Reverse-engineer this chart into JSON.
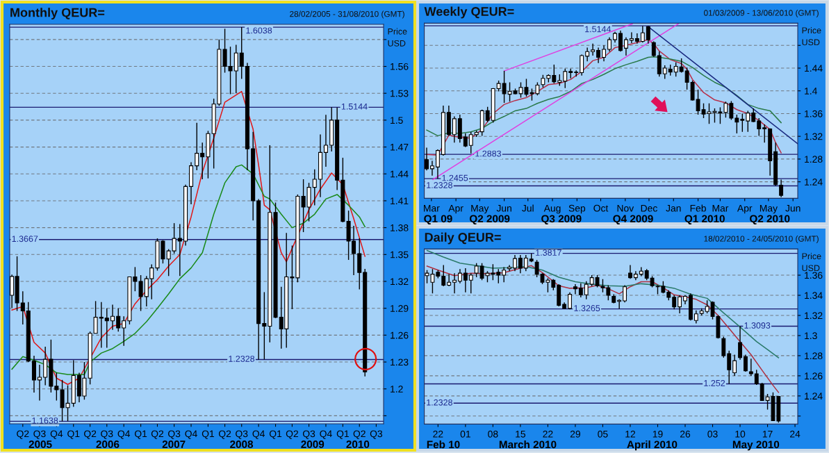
{
  "chart_data": [
    {
      "type": "candlestick",
      "title": "Monthly QEUR=",
      "subtitle": "28/02/2005 - 31/08/2010 (GMT)",
      "ylabel": "Price\nUSD",
      "grid": "y",
      "x": [
        "2005-02",
        "2005-03",
        "2005-04",
        "2005-05",
        "2005-06",
        "2005-07",
        "2005-08",
        "2005-09",
        "2005-10",
        "2005-11",
        "2005-12",
        "2006-01",
        "2006-02",
        "2006-03",
        "2006-04",
        "2006-05",
        "2006-06",
        "2006-07",
        "2006-08",
        "2006-09",
        "2006-10",
        "2006-11",
        "2006-12",
        "2007-01",
        "2007-02",
        "2007-03",
        "2007-04",
        "2007-05",
        "2007-06",
        "2007-07",
        "2007-08",
        "2007-09",
        "2007-10",
        "2007-11",
        "2007-12",
        "2008-01",
        "2008-02",
        "2008-03",
        "2008-04",
        "2008-05",
        "2008-06",
        "2008-07",
        "2008-08",
        "2008-09",
        "2008-10",
        "2008-11",
        "2008-12",
        "2009-01",
        "2009-02",
        "2009-03",
        "2009-04",
        "2009-05",
        "2009-06",
        "2009-07",
        "2009-08",
        "2009-09",
        "2009-10",
        "2009-11",
        "2009-12",
        "2010-01",
        "2010-02",
        "2010-03",
        "2010-04",
        "2010-05"
      ],
      "ohlc": [
        [
          1.3045,
          1.3275,
          1.2905,
          1.3255
        ],
        [
          1.3255,
          1.348,
          1.287,
          1.296
        ],
        [
          1.296,
          1.309,
          1.272,
          1.287
        ],
        [
          1.287,
          1.297,
          1.23,
          1.231
        ],
        [
          1.231,
          1.237,
          1.196,
          1.21
        ],
        [
          1.21,
          1.227,
          1.187,
          1.213
        ],
        [
          1.213,
          1.247,
          1.204,
          1.233
        ],
        [
          1.233,
          1.255,
          1.196,
          1.203
        ],
        [
          1.203,
          1.218,
          1.187,
          1.199
        ],
        [
          1.199,
          1.21,
          1.1638,
          1.179
        ],
        [
          1.179,
          1.204,
          1.164,
          1.184
        ],
        [
          1.184,
          1.232,
          1.18,
          1.215
        ],
        [
          1.215,
          1.218,
          1.185,
          1.192
        ],
        [
          1.192,
          1.23,
          1.188,
          1.212
        ],
        [
          1.212,
          1.264,
          1.205,
          1.262
        ],
        [
          1.262,
          1.298,
          1.262,
          1.28
        ],
        [
          1.28,
          1.297,
          1.246,
          1.279
        ],
        [
          1.279,
          1.29,
          1.246,
          1.276
        ],
        [
          1.276,
          1.294,
          1.266,
          1.281
        ],
        [
          1.281,
          1.29,
          1.264,
          1.268
        ],
        [
          1.268,
          1.281,
          1.248,
          1.276
        ],
        [
          1.276,
          1.325,
          1.272,
          1.325
        ],
        [
          1.325,
          1.336,
          1.309,
          1.32
        ],
        [
          1.32,
          1.327,
          1.287,
          1.303
        ],
        [
          1.303,
          1.326,
          1.292,
          1.323
        ],
        [
          1.323,
          1.339,
          1.3,
          1.335
        ],
        [
          1.335,
          1.368,
          1.332,
          1.365
        ],
        [
          1.365,
          1.366,
          1.34,
          1.345
        ],
        [
          1.345,
          1.356,
          1.326,
          1.354
        ],
        [
          1.354,
          1.385,
          1.351,
          1.368
        ],
        [
          1.368,
          1.384,
          1.326,
          1.365
        ],
        [
          1.365,
          1.428,
          1.36,
          1.426
        ],
        [
          1.426,
          1.453,
          1.406,
          1.449
        ],
        [
          1.449,
          1.497,
          1.444,
          1.463
        ],
        [
          1.463,
          1.475,
          1.434,
          1.459
        ],
        [
          1.459,
          1.488,
          1.435,
          1.485
        ],
        [
          1.485,
          1.524,
          1.446,
          1.518
        ],
        [
          1.518,
          1.59,
          1.516,
          1.579
        ],
        [
          1.579,
          1.602,
          1.553,
          1.56
        ],
        [
          1.56,
          1.582,
          1.529,
          1.555
        ],
        [
          1.555,
          1.584,
          1.53,
          1.575
        ],
        [
          1.575,
          1.6038,
          1.546,
          1.56
        ],
        [
          1.56,
          1.564,
          1.444,
          1.468
        ],
        [
          1.468,
          1.487,
          1.388,
          1.41
        ],
        [
          1.41,
          1.412,
          1.2328,
          1.273
        ],
        [
          1.273,
          1.308,
          1.233,
          1.27
        ],
        [
          1.27,
          1.472,
          1.252,
          1.397
        ],
        [
          1.397,
          1.408,
          1.279,
          1.28
        ],
        [
          1.28,
          1.314,
          1.245,
          1.267
        ],
        [
          1.267,
          1.374,
          1.246,
          1.325
        ],
        [
          1.325,
          1.36,
          1.289,
          1.324
        ],
        [
          1.324,
          1.417,
          1.319,
          1.415
        ],
        [
          1.415,
          1.434,
          1.375,
          1.403
        ],
        [
          1.403,
          1.43,
          1.387,
          1.425
        ],
        [
          1.425,
          1.445,
          1.405,
          1.434
        ],
        [
          1.434,
          1.484,
          1.414,
          1.464
        ],
        [
          1.464,
          1.506,
          1.448,
          1.472
        ],
        [
          1.472,
          1.5144,
          1.465,
          1.5
        ],
        [
          1.5,
          1.514,
          1.422,
          1.433
        ],
        [
          1.433,
          1.458,
          1.386,
          1.387
        ],
        [
          1.387,
          1.399,
          1.344,
          1.365
        ],
        [
          1.365,
          1.382,
          1.327,
          1.351
        ],
        [
          1.351,
          1.368,
          1.311,
          1.33
        ],
        [
          1.33,
          1.334,
          1.214,
          1.219
        ]
      ],
      "series": [
        {
          "type": "line",
          "color": "#e01818",
          "x": [
            "2005-02",
            "2005-04",
            "2005-06",
            "2005-08",
            "2005-10",
            "2005-12",
            "2006-02",
            "2006-04",
            "2006-06",
            "2006-08",
            "2006-10",
            "2006-12",
            "2007-02",
            "2007-04",
            "2007-06",
            "2007-08",
            "2007-10",
            "2007-12",
            "2008-02",
            "2008-04",
            "2008-07",
            "2008-09",
            "2008-10",
            "2008-11",
            "2008-12",
            "2009-01",
            "2009-02",
            "2009-03",
            "2009-05",
            "2009-07",
            "2009-09",
            "2009-11",
            "2010-01",
            "2010-03",
            "2010-05"
          ],
          "values": [
            1.288,
            1.292,
            1.252,
            1.24,
            1.212,
            1.205,
            1.212,
            null,
            1.257,
            1.27,
            1.273,
            1.295,
            1.31,
            1.322,
            1.337,
            1.35,
            1.392,
            1.442,
            1.48,
            1.52,
            1.532,
            1.49,
            1.45,
            1.405,
            1.4,
            null,
            1.352,
            1.342,
            null,
            1.4,
            1.423,
            1.441,
            1.428,
            1.39,
            1.348
          ]
        },
        {
          "type": "line",
          "color": "#1a8a1a",
          "x": [
            "2005-02",
            "2005-04",
            "2005-06",
            "2005-08",
            "2005-10",
            "2005-12",
            "2006-03",
            "2006-04",
            "2006-06",
            "2006-08",
            "2006-10",
            "2006-12",
            "2007-02",
            "2007-04",
            "2007-06",
            "2007-08",
            "2007-10",
            "2007-12",
            "2008-02",
            "2008-04",
            "2008-06",
            "2008-07",
            "2008-09",
            "2008-11",
            "2008-12",
            "2009-02",
            "2009-04",
            "2009-06",
            "2009-08",
            "2009-10",
            "2009-12",
            "2010-02",
            "2010-04",
            "2010-05"
          ],
          "values": [
            1.222,
            1.236,
            1.232,
            1.227,
            1.218,
            1.216,
            1.216,
            1.23,
            1.24,
            1.245,
            1.253,
            1.262,
            1.275,
            1.29,
            1.306,
            1.323,
            1.335,
            1.352,
            1.395,
            1.43,
            1.448,
            1.45,
            1.44,
            1.415,
            1.412,
            1.395,
            1.38,
            1.385,
            1.395,
            1.412,
            1.417,
            1.405,
            1.392,
            1.381
          ]
        }
      ],
      "xlim": [
        "2005-01-20",
        "2010-08-10"
      ],
      "ylim": [
        1.161,
        1.607
      ],
      "xticks": [
        {
          "value": "2005-04",
          "label": "Q2"
        },
        {
          "value": "2005-07",
          "label": "Q3"
        },
        {
          "value": "2005-10",
          "label": "Q4"
        },
        {
          "value": "2006-01",
          "label": "Q1"
        },
        {
          "value": "2006-04",
          "label": "Q2"
        },
        {
          "value": "2006-07",
          "label": "Q3"
        },
        {
          "value": "2006-10",
          "label": "Q4"
        },
        {
          "value": "2007-01",
          "label": "Q1"
        },
        {
          "value": "2007-04",
          "label": "Q2"
        },
        {
          "value": "2007-07",
          "label": "Q3"
        },
        {
          "value": "2007-10",
          "label": "Q4"
        },
        {
          "value": "2008-01",
          "label": "Q1"
        },
        {
          "value": "2008-04",
          "label": "Q2"
        },
        {
          "value": "2008-07",
          "label": "Q3"
        },
        {
          "value": "2008-10",
          "label": "Q4"
        },
        {
          "value": "2009-01",
          "label": "Q1"
        },
        {
          "value": "2009-04",
          "label": "Q2"
        },
        {
          "value": "2009-07",
          "label": "Q3"
        },
        {
          "value": "2009-10",
          "label": "Q4"
        },
        {
          "value": "2010-01",
          "label": "Q1"
        },
        {
          "value": "2010-04",
          "label": "Q2"
        },
        {
          "value": "2010-07",
          "label": "Q3"
        }
      ],
      "yticks": [
        {
          "value": 1.17,
          "label": null
        },
        1.2,
        1.23,
        1.26,
        1.29,
        1.32,
        1.35,
        1.38,
        1.41,
        1.44,
        1.47,
        1.5,
        1.53,
        1.56,
        {
          "value": 1.59,
          "label": null
        }
      ],
      "ref_lines": [
        {
          "axis": "y",
          "value": 1.6038,
          "label": "1.6038"
        },
        {
          "axis": "y",
          "value": 1.5144,
          "label": "1.5144"
        },
        {
          "axis": "y",
          "value": 1.3667,
          "label": "1.3667"
        },
        {
          "axis": "y",
          "value": 1.2328,
          "label": "1.2328"
        },
        {
          "axis": "y",
          "value": 1.1638,
          "label": "1.1638"
        }
      ],
      "annotations": [
        "2005",
        "2006",
        "2007",
        "2008",
        "2009",
        "2010"
      ]
    },
    {
      "type": "candlestick",
      "title": "Weekly QEUR=",
      "subtitle": "01/03/2009 - 13/06/2010 (GMT)",
      "ylabel": "Price\nUSD",
      "grid": "y",
      "x": [
        "2009-02-23",
        "2009-03-02",
        "2009-03-09",
        "2009-03-16",
        "2009-03-23",
        "2009-03-30",
        "2009-04-06",
        "2009-04-13",
        "2009-04-20",
        "2009-04-27",
        "2009-05-04",
        "2009-05-11",
        "2009-05-18",
        "2009-05-25",
        "2009-06-01",
        "2009-06-08",
        "2009-06-15",
        "2009-06-22",
        "2009-06-29",
        "2009-07-06",
        "2009-07-13",
        "2009-07-20",
        "2009-07-27",
        "2009-08-03",
        "2009-08-10",
        "2009-08-17",
        "2009-08-24",
        "2009-08-31",
        "2009-09-07",
        "2009-09-14",
        "2009-09-21",
        "2009-09-28",
        "2009-10-05",
        "2009-10-12",
        "2009-10-19",
        "2009-10-26",
        "2009-11-02",
        "2009-11-09",
        "2009-11-16",
        "2009-11-23",
        "2009-11-30",
        "2009-12-07",
        "2009-12-14",
        "2009-12-21",
        "2009-12-28",
        "2010-01-04",
        "2010-01-11",
        "2010-01-18",
        "2010-01-25",
        "2010-02-01",
        "2010-02-08",
        "2010-02-15",
        "2010-02-22",
        "2010-03-01",
        "2010-03-08",
        "2010-03-15",
        "2010-03-22",
        "2010-03-29",
        "2010-04-05",
        "2010-04-12",
        "2010-04-19",
        "2010-04-26",
        "2010-05-03",
        "2010-05-10",
        "2010-05-17"
      ],
      "ohlc": [
        [
          1.279,
          1.3,
          1.26,
          1.263
        ],
        [
          1.263,
          1.277,
          1.251,
          1.268
        ],
        [
          1.266,
          1.297,
          1.2455,
          1.295
        ],
        [
          1.288,
          1.374,
          1.286,
          1.362
        ],
        [
          1.362,
          1.374,
          1.321,
          1.323
        ],
        [
          1.323,
          1.355,
          1.309,
          1.351
        ],
        [
          1.351,
          1.358,
          1.309,
          1.316
        ],
        [
          1.319,
          1.325,
          1.301,
          1.303
        ],
        [
          1.304,
          1.328,
          1.29,
          1.323
        ],
        [
          1.323,
          1.33,
          1.319,
          1.327
        ],
        [
          1.328,
          1.367,
          1.321,
          1.365
        ],
        [
          1.365,
          1.372,
          1.345,
          1.348
        ],
        [
          1.348,
          1.405,
          1.344,
          1.404
        ],
        [
          1.404,
          1.418,
          1.399,
          1.413
        ],
        [
          1.413,
          1.435,
          1.379,
          1.395
        ],
        [
          1.394,
          1.415,
          1.381,
          1.399
        ],
        [
          1.4,
          1.404,
          1.394,
          1.395
        ],
        [
          1.395,
          1.415,
          1.388,
          1.406
        ],
        [
          1.406,
          1.421,
          1.39,
          1.394
        ],
        [
          1.397,
          1.404,
          1.383,
          1.395
        ],
        [
          1.395,
          1.415,
          1.392,
          1.41
        ],
        [
          1.411,
          1.428,
          1.406,
          1.422
        ],
        [
          1.422,
          1.429,
          1.415,
          1.427
        ],
        [
          1.427,
          1.446,
          1.413,
          1.416
        ],
        [
          1.415,
          1.429,
          1.409,
          1.418
        ],
        [
          1.417,
          1.439,
          1.405,
          1.434
        ],
        [
          1.434,
          1.439,
          1.422,
          1.432
        ],
        [
          1.433,
          1.436,
          1.425,
          1.432
        ],
        [
          1.432,
          1.464,
          1.427,
          1.462
        ],
        [
          1.461,
          1.476,
          1.452,
          1.469
        ],
        [
          1.469,
          1.483,
          1.462,
          1.472
        ],
        [
          1.471,
          1.476,
          1.449,
          1.459
        ],
        [
          1.459,
          1.48,
          1.452,
          1.473
        ],
        [
          1.473,
          1.494,
          1.469,
          1.49
        ],
        [
          1.49,
          1.504,
          1.485,
          1.501
        ],
        [
          1.501,
          1.506,
          1.469,
          1.471
        ],
        [
          1.475,
          1.494,
          1.462,
          1.49
        ],
        [
          1.489,
          1.503,
          1.484,
          1.492
        ],
        [
          1.492,
          1.501,
          1.483,
          1.487
        ],
        [
          1.487,
          1.5144,
          1.485,
          1.502
        ],
        [
          1.513,
          1.514,
          1.483,
          1.49
        ],
        [
          1.485,
          1.487,
          1.46,
          1.462
        ],
        [
          1.462,
          1.469,
          1.425,
          1.43
        ],
        [
          1.43,
          1.445,
          1.421,
          1.44
        ],
        [
          1.438,
          1.446,
          1.427,
          1.433
        ],
        [
          1.433,
          1.45,
          1.425,
          1.443
        ],
        [
          1.442,
          1.457,
          1.432,
          1.434
        ],
        [
          1.435,
          1.441,
          1.402,
          1.415
        ],
        [
          1.415,
          1.418,
          1.383,
          1.384
        ],
        [
          1.385,
          1.402,
          1.358,
          1.365
        ],
        [
          1.367,
          1.378,
          1.352,
          1.359
        ],
        [
          1.36,
          1.378,
          1.342,
          1.363
        ],
        [
          1.362,
          1.369,
          1.344,
          1.364
        ],
        [
          1.363,
          1.371,
          1.342,
          1.361
        ],
        [
          1.362,
          1.381,
          1.353,
          1.378
        ],
        [
          1.378,
          1.382,
          1.349,
          1.352
        ],
        [
          1.352,
          1.358,
          1.325,
          1.345
        ],
        [
          1.35,
          1.36,
          1.328,
          1.348
        ],
        [
          1.347,
          1.365,
          1.328,
          1.361
        ],
        [
          1.361,
          1.369,
          1.345,
          1.346
        ],
        [
          1.347,
          1.352,
          1.321,
          1.333
        ],
        [
          1.335,
          1.341,
          1.309,
          1.333
        ],
        [
          1.333,
          1.334,
          1.251,
          1.277
        ],
        [
          1.293,
          1.309,
          1.233,
          1.235
        ],
        [
          1.234,
          1.244,
          1.213,
          1.216
        ]
      ],
      "series": [
        {
          "type": "line",
          "color": "#b8304a",
          "x": [
            "2009-02-23",
            "2009-03-09",
            "2009-03-23",
            "2009-04-06",
            "2009-04-20",
            "2009-05-04",
            "2009-05-18",
            "2009-06-01",
            "2009-06-15",
            "2009-06-29",
            "2009-07-13",
            "2009-07-27",
            "2009-08-10",
            "2009-08-24",
            "2009-09-07",
            "2009-09-21",
            "2009-10-05",
            "2009-10-19",
            "2009-11-02",
            "2009-11-16",
            "2009-11-30",
            "2009-12-07",
            "2009-12-14",
            "2009-12-28",
            "2010-01-11",
            "2010-01-18",
            "2010-01-25",
            "2010-02-08",
            "2010-02-22",
            "2010-03-08",
            "2010-03-22",
            "2010-04-05",
            "2010-04-19",
            "2010-05-03",
            "2010-05-10",
            "2010-05-17"
          ],
          "values": [
            1.288,
            1.287,
            1.322,
            1.318,
            1.317,
            1.332,
            1.36,
            1.376,
            1.383,
            1.388,
            1.399,
            1.411,
            1.413,
            1.42,
            1.434,
            1.453,
            1.459,
            1.476,
            1.48,
            1.485,
            1.49,
            1.483,
            1.47,
            1.455,
            1.448,
            1.438,
            1.42,
            1.397,
            1.384,
            1.379,
            1.367,
            1.36,
            1.348,
            1.332,
            1.309,
            1.291
          ]
        },
        {
          "type": "line",
          "color": "#2a7a4a",
          "x": [
            "2009-02-23",
            "2009-03-09",
            "2009-03-23",
            "2009-04-06",
            "2009-04-20",
            "2009-05-04",
            "2009-05-18",
            "2009-06-01",
            "2009-06-15",
            "2009-06-29",
            "2009-07-13",
            "2009-07-27",
            "2009-08-10",
            "2009-08-24",
            "2009-09-07",
            "2009-09-21",
            "2009-10-05",
            "2009-10-19",
            "2009-11-02",
            "2009-11-16",
            "2009-11-30",
            "2009-12-07",
            "2009-12-14",
            "2009-12-28",
            "2010-01-11",
            "2010-01-25",
            "2010-02-08",
            "2010-02-22",
            "2010-03-08",
            "2010-03-22",
            "2010-04-05",
            "2010-04-19",
            "2010-05-03",
            "2010-05-17"
          ],
          "values": [
            1.331,
            1.321,
            1.326,
            1.325,
            1.328,
            1.334,
            1.346,
            1.355,
            1.365,
            1.369,
            1.378,
            1.385,
            1.39,
            1.399,
            1.413,
            1.42,
            1.429,
            1.439,
            1.446,
            1.452,
            1.459,
            1.46,
            1.459,
            1.456,
            1.452,
            1.441,
            1.427,
            1.415,
            1.406,
            1.392,
            1.376,
            1.369,
            1.365,
            1.344
          ]
        },
        {
          "type": "line",
          "color": "#e040e0",
          "x": [
            "2009-06-01",
            "2009-11-10"
          ],
          "values": [
            1.435,
            1.518
          ]
        },
        {
          "type": "line",
          "color": "#e040e0",
          "x": [
            "2009-03-03",
            "2010-01-07"
          ],
          "values": [
            1.244,
            1.518
          ]
        },
        {
          "type": "line",
          "color": "#1a2a80",
          "x": [
            "2009-11-30",
            "2010-06-07"
          ],
          "values": [
            1.513,
            1.307
          ]
        }
      ],
      "xlim": [
        "2009-02-20",
        "2010-06-07"
      ],
      "ylim": [
        1.211,
        1.519
      ],
      "xticks": [
        {
          "value": "2009-03",
          "label": "Mar"
        },
        {
          "value": "2009-04",
          "label": "Apr"
        },
        {
          "value": "2009-05",
          "label": "May"
        },
        {
          "value": "2009-06",
          "label": "Jun"
        },
        {
          "value": "2009-07",
          "label": "Jul"
        },
        {
          "value": "2009-08",
          "label": "Aug"
        },
        {
          "value": "2009-09",
          "label": "Sep"
        },
        {
          "value": "2009-10",
          "label": "Oct"
        },
        {
          "value": "2009-11",
          "label": "Nov"
        },
        {
          "value": "2009-12",
          "label": "Dec"
        },
        {
          "value": "2010-01",
          "label": "Jan"
        },
        {
          "value": "2010-02",
          "label": "Feb"
        },
        {
          "value": "2010-03",
          "label": "Mar"
        },
        {
          "value": "2010-04",
          "label": "Apr"
        },
        {
          "value": "2010-05",
          "label": "May"
        },
        {
          "value": "2010-06",
          "label": "Jun"
        }
      ],
      "yticks": [
        1.24,
        1.28,
        1.32,
        1.36,
        1.4,
        1.44,
        {
          "value": 1.48,
          "label": null
        }
      ],
      "ref_lines": [
        {
          "axis": "y",
          "value": 1.5144,
          "label": "1.5144"
        },
        {
          "axis": "y",
          "value": 1.2883,
          "label": "1.2883"
        },
        {
          "axis": "y",
          "value": 1.2455,
          "label": "1.2455"
        },
        {
          "axis": "y",
          "value": 1.2328,
          "label": "1.2328"
        }
      ],
      "annotations": [
        "Q1 09",
        "Q2 2009",
        "Q3 2009",
        "Q4 2009",
        "Q1 2010",
        "Q2 2010"
      ]
    },
    {
      "type": "candlestick",
      "title": "Daily QEUR=",
      "subtitle": "18/02/2010 - 24/05/2010 (GMT)",
      "ylabel": "Price\nUSD",
      "grid": "y",
      "categories": [
        null,
        null,
        "22",
        null,
        null,
        null,
        null,
        "01",
        null,
        null,
        null,
        null,
        "08",
        null,
        null,
        null,
        null,
        "15",
        null,
        null,
        null,
        null,
        "22",
        null,
        null,
        null,
        null,
        "29",
        null,
        null,
        null,
        null,
        "05",
        null,
        null,
        null,
        null,
        "12",
        null,
        null,
        null,
        null,
        "19",
        null,
        null,
        null,
        null,
        "26",
        null,
        null,
        null,
        null,
        "03",
        null,
        null,
        null,
        null,
        "10",
        null,
        null,
        null,
        null,
        "17",
        null,
        null,
        null,
        null,
        "24"
      ],
      "ohlc": [
        [
          1.3595,
          1.365,
          1.352,
          1.362
        ],
        [
          1.353,
          1.366,
          1.342,
          1.361
        ],
        [
          1.363,
          1.365,
          1.357,
          1.359
        ],
        [
          1.359,
          1.37,
          1.349,
          1.35
        ],
        [
          1.35,
          1.361,
          1.349,
          1.353
        ],
        [
          1.353,
          1.362,
          1.342,
          1.355
        ],
        [
          1.354,
          1.366,
          1.352,
          1.362
        ],
        [
          1.362,
          1.367,
          1.343,
          1.355
        ],
        [
          1.355,
          1.362,
          1.342,
          1.36
        ],
        [
          1.362,
          1.372,
          1.358,
          1.369
        ],
        [
          1.369,
          1.372,
          1.355,
          1.357
        ],
        [
          1.3595,
          1.364,
          1.353,
          1.362
        ],
        [
          1.362,
          1.371,
          1.355,
          1.361
        ],
        [
          1.363,
          1.366,
          1.352,
          1.36
        ],
        [
          1.36,
          1.368,
          1.353,
          1.365
        ],
        [
          1.3665,
          1.37,
          1.364,
          1.368
        ],
        [
          1.367,
          1.38,
          1.364,
          1.3765
        ],
        [
          1.377,
          1.38,
          1.362,
          1.367
        ],
        [
          1.367,
          1.38,
          1.364,
          1.377
        ],
        [
          1.376,
          1.3817,
          1.373,
          1.374
        ],
        [
          1.373,
          1.375,
          1.358,
          1.361
        ],
        [
          1.361,
          1.362,
          1.351,
          1.353
        ],
        [
          1.353,
          1.357,
          1.343,
          1.355
        ],
        [
          1.355,
          1.356,
          1.345,
          1.348
        ],
        [
          1.35,
          1.351,
          1.329,
          1.33
        ],
        [
          1.331,
          1.333,
          1.3265,
          1.327
        ],
        [
          1.327,
          1.343,
          1.326,
          1.341
        ],
        [
          1.3485,
          1.351,
          1.341,
          1.3465
        ],
        [
          1.347,
          1.352,
          1.338,
          1.3405
        ],
        [
          1.3405,
          1.354,
          1.336,
          1.351
        ],
        [
          1.351,
          1.36,
          1.349,
          1.3575
        ],
        [
          1.3575,
          1.36,
          1.348,
          1.3495
        ],
        [
          1.349,
          1.356,
          1.343,
          1.3475
        ],
        [
          1.3475,
          1.35,
          1.335,
          1.34
        ],
        [
          1.339,
          1.341,
          1.332,
          1.333
        ],
        [
          1.334,
          1.336,
          1.3265,
          1.335
        ],
        [
          1.3345,
          1.35,
          1.333,
          1.3485
        ],
        [
          1.362,
          1.37,
          1.3565,
          1.3575
        ],
        [
          1.3575,
          1.364,
          1.355,
          1.361
        ],
        [
          1.361,
          1.368,
          1.359,
          1.364
        ],
        [
          1.3645,
          1.366,
          1.355,
          1.357
        ],
        [
          1.357,
          1.359,
          1.348,
          1.3495
        ],
        [
          1.349,
          1.35,
          1.341,
          1.3485
        ],
        [
          1.349,
          1.354,
          1.342,
          1.343
        ],
        [
          1.343,
          1.345,
          1.335,
          1.338
        ],
        [
          1.338,
          1.34,
          1.326,
          1.3285
        ],
        [
          1.3285,
          1.34,
          1.322,
          1.3385
        ],
        [
          1.3345,
          1.34,
          1.331,
          1.339
        ],
        [
          1.34,
          1.342,
          1.315,
          1.316
        ],
        [
          1.315,
          1.325,
          1.312,
          1.3215
        ],
        [
          1.322,
          1.327,
          1.32,
          1.3245
        ],
        [
          1.324,
          1.335,
          1.322,
          1.329
        ],
        [
          1.333,
          1.334,
          1.316,
          1.319
        ],
        [
          1.319,
          1.32,
          1.297,
          1.298
        ],
        [
          1.297,
          1.299,
          1.278,
          1.28
        ],
        [
          1.282,
          1.285,
          1.252,
          1.266
        ],
        [
          1.263,
          1.281,
          1.26,
          1.275
        ],
        [
          1.293,
          1.3093,
          1.276,
          1.278
        ],
        [
          1.279,
          1.281,
          1.264,
          1.265
        ],
        [
          1.264,
          1.277,
          1.26,
          1.262
        ],
        [
          1.262,
          1.266,
          1.251,
          1.252
        ],
        [
          1.252,
          1.253,
          1.235,
          1.2355
        ],
        [
          1.2355,
          1.242,
          1.2265,
          1.239
        ],
        [
          1.2395,
          1.2435,
          1.215,
          1.2155
        ],
        [
          1.2395,
          1.2395,
          1.2135,
          1.215
        ],
        null,
        null,
        null
      ],
      "series": [
        {
          "type": "line",
          "color": "#b03040",
          "values": [
            1.369,
            null,
            1.365,
            null,
            null,
            1.3595,
            null,
            null,
            1.362,
            null,
            null,
            1.3615,
            null,
            null,
            1.3625,
            null,
            null,
            1.367,
            null,
            1.3695,
            null,
            1.3625,
            null,
            null,
            1.3495,
            null,
            1.347,
            null,
            null,
            1.3475,
            null,
            1.35,
            null,
            1.3465,
            null,
            1.3415,
            null,
            1.3485,
            null,
            1.3535,
            null,
            1.3535,
            null,
            1.3475,
            null,
            1.3405,
            null,
            1.3385,
            null,
            1.336,
            null,
            1.3305,
            null,
            1.32,
            null,
            1.307,
            null,
            1.294,
            null,
            1.281,
            null,
            1.2655,
            null,
            1.2505,
            1.2435,
            null,
            null,
            null
          ]
        },
        {
          "type": "line",
          "color": "#2a7a6a",
          "values": [
            1.3845,
            null,
            null,
            1.378,
            null,
            null,
            1.372,
            null,
            null,
            1.3695,
            null,
            null,
            1.367,
            null,
            null,
            1.3675,
            null,
            null,
            1.3685,
            null,
            null,
            1.365,
            null,
            null,
            1.358,
            null,
            null,
            1.3535,
            null,
            null,
            1.351,
            null,
            null,
            1.3495,
            null,
            null,
            1.349,
            null,
            null,
            1.3515,
            null,
            null,
            1.35,
            null,
            null,
            1.347,
            null,
            null,
            1.341,
            null,
            null,
            1.337,
            null,
            null,
            1.3225,
            null,
            null,
            1.3085,
            null,
            null,
            1.294,
            null,
            1.286,
            null,
            1.278,
            null,
            null,
            null
          ]
        }
      ],
      "ylim": [
        1.212,
        1.386
      ],
      "yticks": [
        {
          "value": 1.22,
          "label": null
        },
        1.24,
        1.26,
        1.28,
        1.3,
        1.32,
        1.34,
        1.36
      ],
      "ref_lines": [
        {
          "axis": "y",
          "value": 1.3817,
          "label": "1.3817"
        },
        {
          "axis": "y",
          "value": 1.3265,
          "label": "1.3265"
        },
        {
          "axis": "y",
          "value": 1.3093,
          "label": "1.3093"
        },
        {
          "axis": "y",
          "value": 1.252,
          "label": "1.252"
        },
        {
          "axis": "y",
          "value": 1.2328,
          "label": "1.2328"
        }
      ],
      "annotations": [
        "Feb 10",
        "March 2010",
        "April 2010",
        "May 2010"
      ]
    }
  ]
}
